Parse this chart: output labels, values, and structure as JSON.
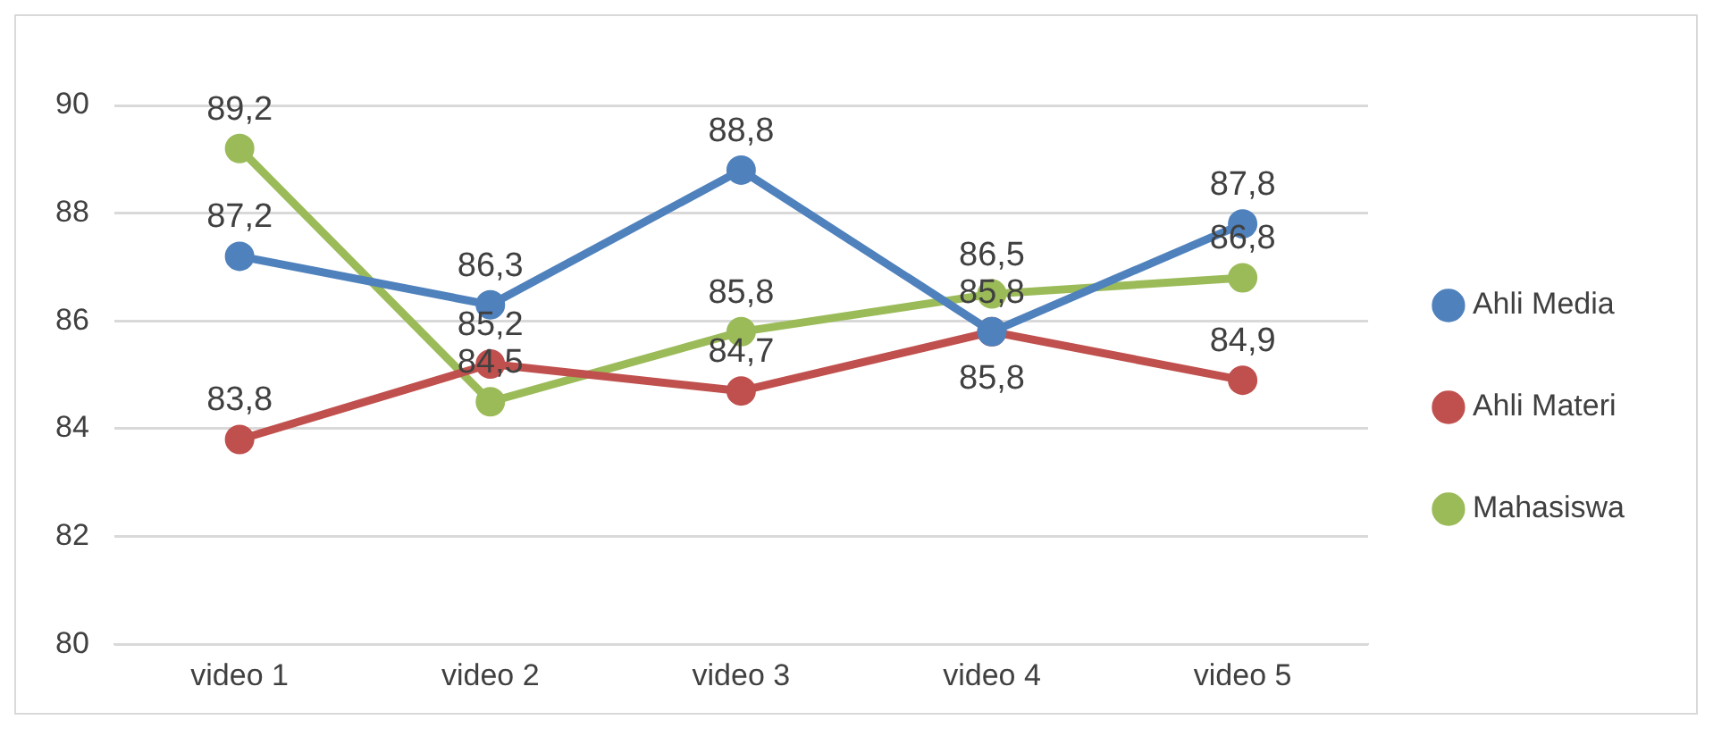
{
  "chart_data": {
    "type": "line",
    "categories": [
      "video 1",
      "video 2",
      "video 3",
      "video 4",
      "video 5"
    ],
    "series": [
      {
        "name": "Ahli Media",
        "color": "#4f81bd",
        "values": [
          87.2,
          86.3,
          88.8,
          85.8,
          87.8
        ],
        "value_labels": [
          "87,2",
          "86,3",
          "88,8",
          "85,8",
          "87,8"
        ]
      },
      {
        "name": "Ahli Materi",
        "color": "#c0504d",
        "values": [
          83.8,
          85.2,
          84.7,
          85.8,
          84.9
        ],
        "value_labels": [
          "83,8",
          "85,2",
          "84,7",
          "85,8",
          "84,9"
        ]
      },
      {
        "name": "Mahasiswa",
        "color": "#9bbb59",
        "values": [
          89.2,
          84.5,
          85.8,
          86.5,
          86.8
        ],
        "value_labels": [
          "89,2",
          "84,5",
          "85,8",
          "86,5",
          "86,8"
        ]
      }
    ],
    "ylim": [
      80,
      90
    ],
    "yticks": [
      80,
      82,
      84,
      86,
      88,
      90
    ],
    "grid": "y",
    "legend": "right",
    "marker": "circle",
    "line_style": "solid"
  }
}
